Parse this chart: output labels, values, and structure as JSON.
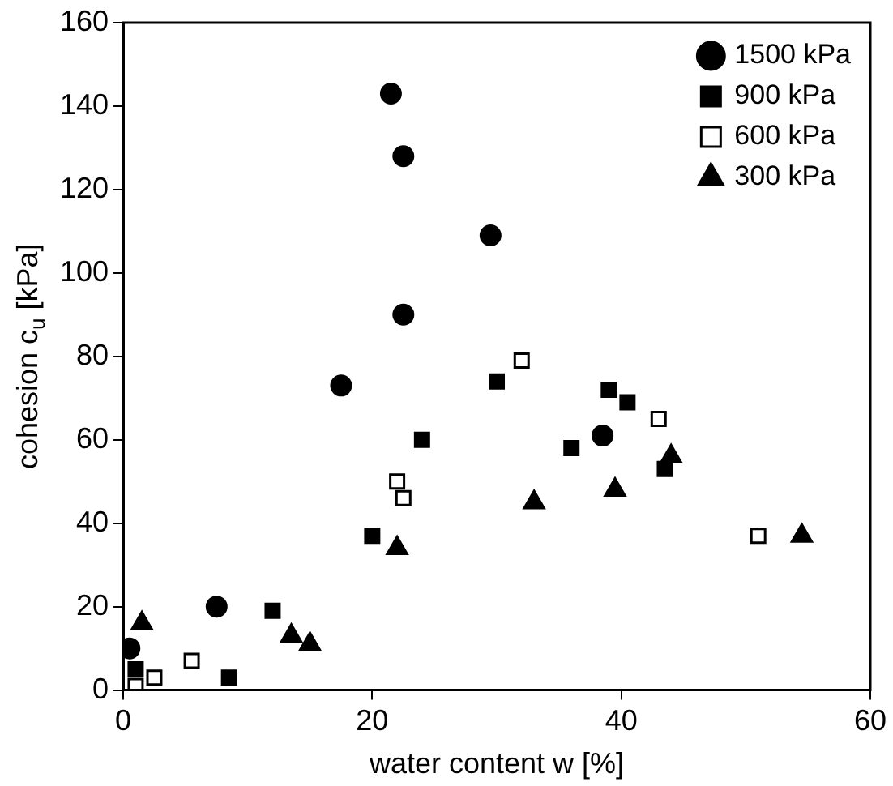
{
  "chart_data": {
    "type": "scatter",
    "xlabel": "water content w [%]",
    "ylabel": "cohesion c$_{u}$ [kPa]",
    "xlim": [
      0,
      60
    ],
    "xticks": [
      0,
      20,
      40,
      60
    ],
    "ylim": [
      0,
      160
    ],
    "yticks": [
      0,
      20,
      40,
      60,
      80,
      100,
      120,
      140,
      160
    ],
    "grid": false,
    "legend": "top right",
    "series": [
      {
        "name": "1500 kPa",
        "color": "#000000",
        "marker": "circle",
        "x": [
          21.5,
          22.5,
          29.5,
          22.5,
          17.5,
          38.5,
          7.5,
          0.5
        ],
        "values": [
          143,
          128,
          109,
          90,
          73,
          61,
          20,
          10
        ]
      },
      {
        "name": "900 kPa",
        "color": "#000000",
        "marker": "square",
        "x": [
          30,
          24,
          20,
          39,
          40.5,
          36,
          43.5,
          12,
          8.5,
          1
        ],
        "values": [
          74,
          60,
          37,
          72,
          69,
          58,
          53,
          19,
          3,
          5
        ]
      },
      {
        "name": "600 kPa",
        "color": "#ffffff",
        "marker": "square",
        "x": [
          32,
          22,
          22.5,
          43,
          51,
          5.5,
          2.5,
          1
        ],
        "values": [
          79,
          50,
          46,
          65,
          37,
          7,
          3,
          1
        ]
      },
      {
        "name": "300 kPa",
        "color": "#000000",
        "marker": "triangle",
        "x": [
          1.5,
          13.5,
          15,
          22,
          33,
          39.5,
          44,
          54.5
        ],
        "values": [
          16,
          13,
          11,
          34,
          45,
          48,
          56,
          37
        ]
      }
    ]
  }
}
